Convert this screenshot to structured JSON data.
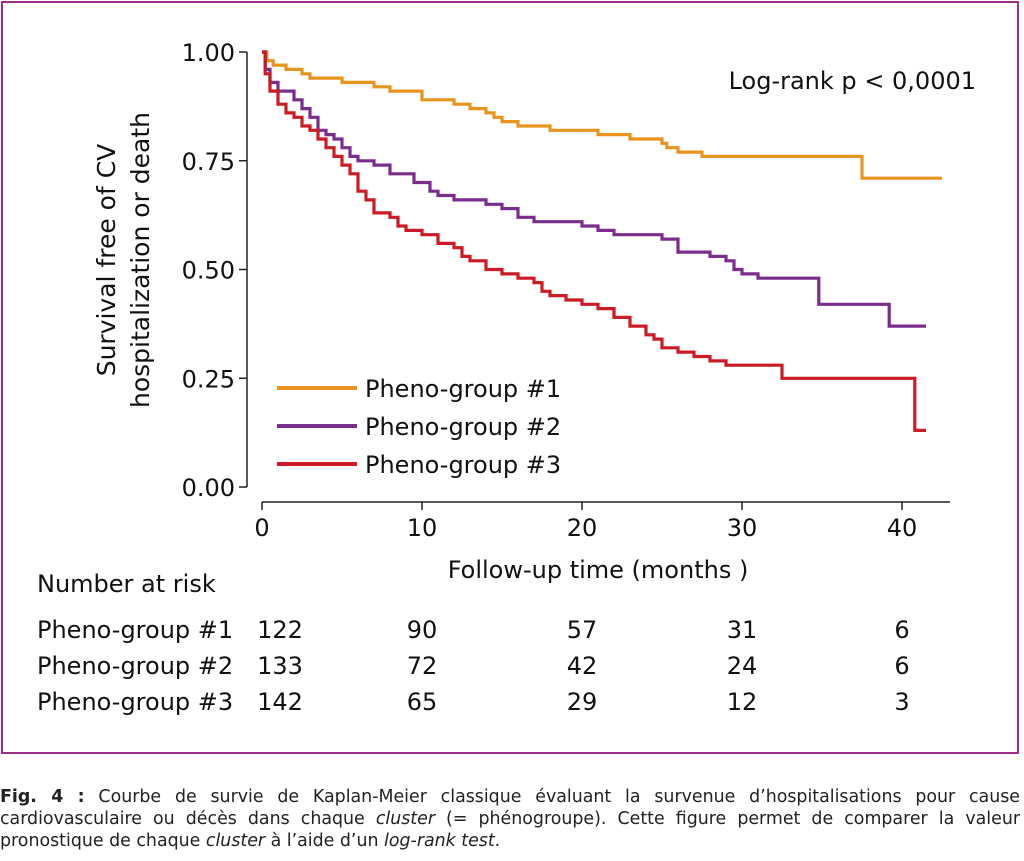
{
  "chart_data": {
    "type": "line",
    "step": true,
    "xlabel": "Follow-up time (months )",
    "ylabel_line1": "Survival free of CV",
    "ylabel_line2": "hospitalization or death",
    "xlim": [
      0,
      43
    ],
    "ylim": [
      0,
      1
    ],
    "xticks": [
      0,
      10,
      20,
      30,
      40
    ],
    "xtick_labels": [
      "0",
      "10",
      "20",
      "30",
      "40"
    ],
    "yticks": [
      0,
      0.25,
      0.5,
      0.75,
      1
    ],
    "ytick_labels": [
      "0.00",
      "0.25",
      "0.50",
      "0.75",
      "1.00"
    ],
    "annotation": "Log-rank p < 0,0001",
    "legend_position": "bottom-left",
    "series": [
      {
        "name": "Pheno-group #1",
        "color": "#e8941f",
        "points": [
          [
            0,
            1.0
          ],
          [
            0.3,
            0.98
          ],
          [
            0.7,
            0.97
          ],
          [
            1.5,
            0.96
          ],
          [
            2.5,
            0.95
          ],
          [
            3,
            0.94
          ],
          [
            5,
            0.93
          ],
          [
            7,
            0.92
          ],
          [
            8,
            0.91
          ],
          [
            10,
            0.89
          ],
          [
            12,
            0.88
          ],
          [
            13,
            0.87
          ],
          [
            14,
            0.86
          ],
          [
            14.5,
            0.85
          ],
          [
            15,
            0.84
          ],
          [
            16,
            0.83
          ],
          [
            18,
            0.82
          ],
          [
            21,
            0.81
          ],
          [
            23,
            0.8
          ],
          [
            25,
            0.79
          ],
          [
            25.3,
            0.78
          ],
          [
            26,
            0.77
          ],
          [
            27.5,
            0.76
          ],
          [
            37.5,
            0.75
          ],
          [
            37.5,
            0.71
          ],
          [
            42.5,
            0.71
          ]
        ]
      },
      {
        "name": "Pheno-group #2",
        "color": "#7b2d8e",
        "points": [
          [
            0,
            1.0
          ],
          [
            0.2,
            0.96
          ],
          [
            0.5,
            0.93
          ],
          [
            1,
            0.91
          ],
          [
            2,
            0.89
          ],
          [
            2.5,
            0.87
          ],
          [
            3,
            0.85
          ],
          [
            3.5,
            0.82
          ],
          [
            4,
            0.81
          ],
          [
            4.5,
            0.8
          ],
          [
            5,
            0.78
          ],
          [
            5.5,
            0.76
          ],
          [
            6,
            0.75
          ],
          [
            7,
            0.74
          ],
          [
            8,
            0.72
          ],
          [
            9.5,
            0.7
          ],
          [
            10.5,
            0.68
          ],
          [
            11,
            0.67
          ],
          [
            12,
            0.66
          ],
          [
            14,
            0.65
          ],
          [
            15,
            0.64
          ],
          [
            16,
            0.62
          ],
          [
            17,
            0.61
          ],
          [
            20,
            0.6
          ],
          [
            21,
            0.59
          ],
          [
            22,
            0.58
          ],
          [
            25,
            0.57
          ],
          [
            26,
            0.54
          ],
          [
            28,
            0.53
          ],
          [
            29,
            0.52
          ],
          [
            29.5,
            0.5
          ],
          [
            30,
            0.49
          ],
          [
            31,
            0.48
          ],
          [
            34,
            0.48
          ],
          [
            34.8,
            0.42
          ],
          [
            39,
            0.42
          ],
          [
            39.2,
            0.37
          ],
          [
            41.5,
            0.37
          ]
        ]
      },
      {
        "name": "Pheno-group #3",
        "color": "#cc1b24",
        "points": [
          [
            0,
            1.0
          ],
          [
            0.2,
            0.95
          ],
          [
            0.5,
            0.91
          ],
          [
            1,
            0.88
          ],
          [
            1.5,
            0.86
          ],
          [
            2,
            0.85
          ],
          [
            2.5,
            0.83
          ],
          [
            3,
            0.82
          ],
          [
            3.5,
            0.8
          ],
          [
            4,
            0.78
          ],
          [
            4.5,
            0.76
          ],
          [
            5,
            0.74
          ],
          [
            5.5,
            0.72
          ],
          [
            6,
            0.68
          ],
          [
            6.5,
            0.66
          ],
          [
            7,
            0.63
          ],
          [
            8,
            0.62
          ],
          [
            8.5,
            0.6
          ],
          [
            9,
            0.59
          ],
          [
            10,
            0.58
          ],
          [
            11,
            0.56
          ],
          [
            12,
            0.55
          ],
          [
            12.5,
            0.53
          ],
          [
            13,
            0.52
          ],
          [
            14,
            0.5
          ],
          [
            15,
            0.49
          ],
          [
            16,
            0.48
          ],
          [
            17,
            0.47
          ],
          [
            17.5,
            0.45
          ],
          [
            18,
            0.44
          ],
          [
            19,
            0.43
          ],
          [
            20,
            0.42
          ],
          [
            21,
            0.41
          ],
          [
            22,
            0.39
          ],
          [
            23,
            0.37
          ],
          [
            24,
            0.35
          ],
          [
            24.5,
            0.34
          ],
          [
            25,
            0.32
          ],
          [
            26,
            0.31
          ],
          [
            27,
            0.3
          ],
          [
            28,
            0.29
          ],
          [
            29,
            0.28
          ],
          [
            31,
            0.28
          ],
          [
            32.5,
            0.25
          ],
          [
            40.8,
            0.25
          ],
          [
            40.8,
            0.13
          ],
          [
            41.5,
            0.13
          ]
        ]
      }
    ]
  },
  "risk_table": {
    "title": "Number at risk",
    "times": [
      0,
      10,
      20,
      30,
      40
    ],
    "rows": [
      {
        "label": "Pheno-group #1",
        "values": [
          "122",
          "90",
          "57",
          "31",
          "6"
        ]
      },
      {
        "label": "Pheno-group #2",
        "values": [
          "133",
          "72",
          "42",
          "24",
          "6"
        ]
      },
      {
        "label": "Pheno-group #3",
        "values": [
          "142",
          "65",
          "29",
          "12",
          "3"
        ]
      }
    ]
  },
  "caption": {
    "label": "Fig. 4 :",
    "t1": " Courbe de survie de Kaplan-Meier classique évaluant la survenue d’hospitalisations pour cause cardiovasculaire ou décès dans chaque ",
    "em1": "cluster",
    "t2": " (= phénogroupe). Cette figure permet de comparer la valeur pronostique de chaque ",
    "em2": "cluster",
    "t3": " à l’aide d’un ",
    "em3": "log-rank test",
    "t4": "."
  },
  "colors": {
    "frame": "#9b2f88"
  }
}
